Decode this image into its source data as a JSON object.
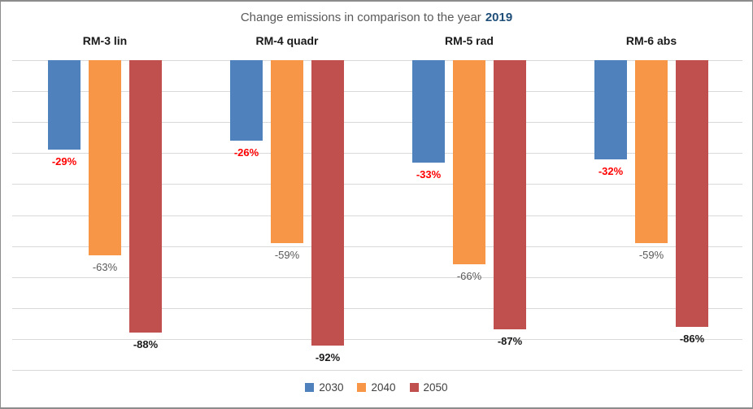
{
  "title": {
    "main": "Change emissions in comparison to the year",
    "year": "2019"
  },
  "colors": {
    "series_2030": "#4F81BD",
    "series_2040": "#F79646",
    "series_2050": "#C0504D",
    "gridline": "#D9D9D9",
    "title_text": "#595959",
    "title_year": "#1F4E79",
    "label_2030": "#FF0000",
    "label_2040": "#595959",
    "label_2050": "#1A1A1A",
    "category_header": "#1A1A1A",
    "legend_text": "#404040",
    "chart_border": "#8C8C8C"
  },
  "chart_data": {
    "type": "bar",
    "orientation": "vertical",
    "title": "Change emissions in comparison to the year 2019",
    "categories": [
      "RM-3 lin",
      "RM-4 quadr",
      "RM-5 rad",
      "RM-6 abs"
    ],
    "series": [
      {
        "name": "2030",
        "color": "#4F81BD",
        "values": [
          -29,
          -26,
          -33,
          -32
        ],
        "label_color": "#FF0000",
        "label_bold": true
      },
      {
        "name": "2040",
        "color": "#F79646",
        "values": [
          -63,
          -59,
          -66,
          -59
        ],
        "label_color": "#595959",
        "label_bold": false
      },
      {
        "name": "2050",
        "color": "#C0504D",
        "values": [
          -88,
          -92,
          -87,
          -86
        ],
        "label_color": "#1A1A1A",
        "label_bold": true
      }
    ],
    "value_suffix": "%",
    "ylim": [
      -100,
      0
    ],
    "gridline_step": 10,
    "grid": true,
    "y_axis_tick_labels_visible": false,
    "data_labels": "outside-end",
    "legend_position": "bottom",
    "legend_entries": [
      "2030",
      "2040",
      "2050"
    ]
  }
}
